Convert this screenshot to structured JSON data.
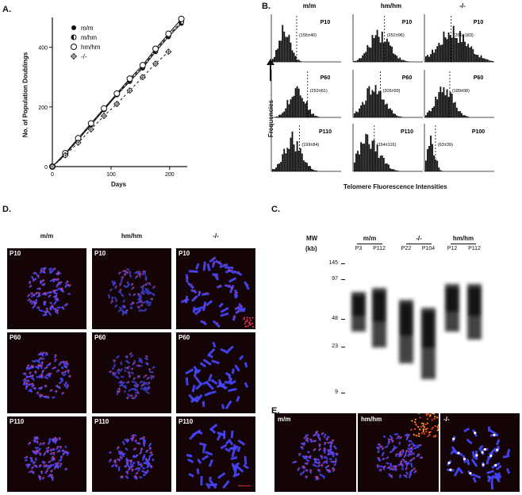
{
  "panels": {
    "a": "A.",
    "b": "B.",
    "c": "C.",
    "d": "D.",
    "e": "E."
  },
  "panel_a": {
    "ylabel": "No. of Population Doublings",
    "xlabel": "Days",
    "yticks": [
      "0",
      "200",
      "400"
    ],
    "xticks": [
      "0",
      "100",
      "200"
    ],
    "legend": [
      "m/m",
      "m/hm",
      "hm/hm",
      "-/-"
    ]
  },
  "chart_data": {
    "type": "line",
    "xlabel": "Days",
    "ylabel": "No. of Population Doublings",
    "xlim": [
      0,
      230
    ],
    "ylim": [
      0,
      500
    ],
    "yticks": [
      0,
      200,
      400
    ],
    "xticks": [
      0,
      100,
      200
    ],
    "legend_position": "top-right",
    "series": [
      {
        "name": "m/m",
        "marker": "filled-circle",
        "x": [
          0,
          22,
          44,
          66,
          88,
          110,
          132,
          154,
          176,
          198,
          220
        ],
        "y": [
          0,
          40,
          90,
          140,
          190,
          240,
          285,
          330,
          385,
          435,
          480
        ]
      },
      {
        "name": "m/hm",
        "marker": "half-circle",
        "x": [
          0,
          22,
          44,
          66,
          88,
          110,
          132,
          154,
          176,
          198,
          220
        ],
        "y": [
          0,
          42,
          92,
          142,
          192,
          242,
          290,
          335,
          390,
          440,
          485
        ]
      },
      {
        "name": "hm/hm",
        "marker": "open-circle",
        "x": [
          0,
          22,
          44,
          66,
          88,
          110,
          132,
          154,
          176,
          198,
          220
        ],
        "y": [
          0,
          45,
          95,
          145,
          195,
          245,
          295,
          340,
          395,
          445,
          495
        ]
      },
      {
        "name": "-/-",
        "marker": "crossed-diamond",
        "x": [
          0,
          22,
          44,
          66,
          88,
          110,
          132,
          154,
          176,
          198
        ],
        "y": [
          0,
          38,
          80,
          125,
          170,
          210,
          255,
          300,
          345,
          385
        ]
      }
    ]
  },
  "panel_b": {
    "ylabel": "Frequencies",
    "xlabel": "Telomere Fluorescence Intensities",
    "columns": [
      "m/m",
      "hm/hm",
      "-/-"
    ],
    "rows": [
      [
        {
          "passage": "P10",
          "stat": "(155±40)"
        },
        {
          "passage": "P10",
          "stat": "(252±96)"
        },
        {
          "passage": "P10",
          "stat": "(266±183)"
        }
      ],
      [
        {
          "passage": "P60",
          "stat": "(253±81)"
        },
        {
          "passage": "P60",
          "stat": "(205±99)"
        },
        {
          "passage": "P60",
          "stat": "(189±98)"
        }
      ],
      [
        {
          "passage": "P110",
          "stat": "(199±84)"
        },
        {
          "passage": "P110",
          "stat": "(154±116)"
        },
        {
          "passage": "P100",
          "stat": "(63±39)"
        }
      ]
    ]
  },
  "panel_c": {
    "mw_label": "MW",
    "kb_label": "(kb)",
    "markers": [
      "145",
      "97",
      "48",
      "23",
      "9"
    ],
    "groups": [
      "m/m",
      "-/-",
      "hm/hm"
    ],
    "lanes": [
      "P3",
      "P112",
      "P22",
      "P104",
      "P12",
      "P112"
    ]
  },
  "panel_d": {
    "columns": [
      "m/m",
      "hm/hm",
      "-/-"
    ],
    "rows": [
      [
        "P10",
        "P10",
        "P10"
      ],
      [
        "P60",
        "P60",
        "P60"
      ],
      [
        "P110",
        "P110",
        "P110"
      ]
    ]
  },
  "panel_e": {
    "labels": [
      "m/m",
      "hm/hm",
      "-/-"
    ]
  }
}
